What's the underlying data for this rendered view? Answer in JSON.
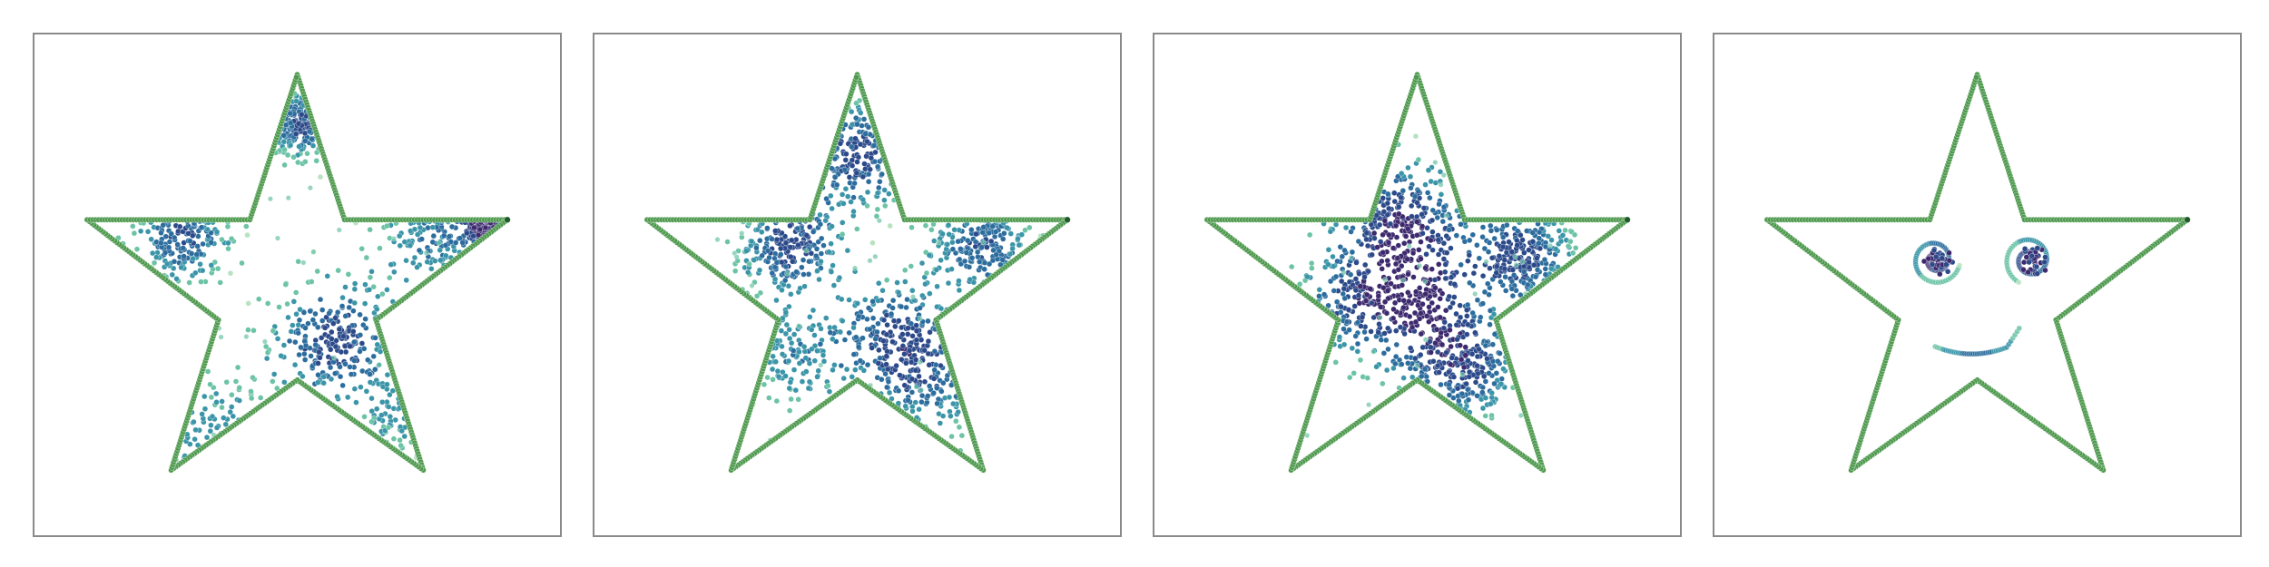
{
  "chart_data": [
    {
      "type": "scatter",
      "panel": 1,
      "title": "",
      "xlabel": "",
      "ylabel": "",
      "xlim": [
        0,
        100
      ],
      "ylim": [
        0,
        100
      ],
      "grid": false,
      "outline_series": {
        "color": "#4f9a4f",
        "shape": "five-point star outline"
      },
      "density_clusters": [
        {
          "x": 28,
          "y": 60,
          "spread": 6,
          "density": 0.8
        },
        {
          "x": 51,
          "y": 82,
          "spread": 4,
          "density": 0.9
        },
        {
          "x": 57,
          "y": 39,
          "spread": 8,
          "density": 0.9
        },
        {
          "x": 76,
          "y": 60,
          "spread": 7,
          "density": 0.6
        },
        {
          "x": 86,
          "y": 62,
          "spread": 3,
          "density": 1.0
        },
        {
          "x": 35,
          "y": 20,
          "spread": 8,
          "density": 0.5
        },
        {
          "x": 71,
          "y": 24,
          "spread": 6,
          "density": 0.4
        }
      ],
      "palette": [
        "#b7e3c1",
        "#6cc3a6",
        "#3b95a8",
        "#2c6d9e",
        "#2c4a8a",
        "#3d2a6e"
      ]
    },
    {
      "type": "scatter",
      "panel": 2,
      "title": "",
      "xlabel": "",
      "ylabel": "",
      "xlim": [
        0,
        100
      ],
      "ylim": [
        0,
        100
      ],
      "grid": false,
      "outline_series": {
        "color": "#4f9a4f",
        "shape": "five-point star outline"
      },
      "density_clusters": [
        {
          "x": 50,
          "y": 76,
          "spread": 7,
          "density": 0.9
        },
        {
          "x": 37,
          "y": 58,
          "spread": 6,
          "density": 0.9
        },
        {
          "x": 58,
          "y": 39,
          "spread": 8,
          "density": 0.9
        },
        {
          "x": 74,
          "y": 58,
          "spread": 6,
          "density": 0.8
        },
        {
          "x": 37,
          "y": 36,
          "spread": 7,
          "density": 0.5
        },
        {
          "x": 65,
          "y": 28,
          "spread": 6,
          "density": 0.4
        }
      ],
      "palette": [
        "#b7e3c1",
        "#6cc3a6",
        "#3b95a8",
        "#2c6d9e",
        "#2c4a8a",
        "#3d2a6e"
      ]
    },
    {
      "type": "scatter",
      "panel": 3,
      "title": "",
      "xlabel": "",
      "ylabel": "",
      "xlim": [
        0,
        100
      ],
      "ylim": [
        0,
        100
      ],
      "grid": false,
      "outline_series": {
        "color": "#4f9a4f",
        "shape": "five-point star outline"
      },
      "density_clusters": [
        {
          "x": 47,
          "y": 62,
          "spread": 8,
          "density": 1.0
        },
        {
          "x": 52,
          "y": 44,
          "spread": 8,
          "density": 0.9
        },
        {
          "x": 70,
          "y": 56,
          "spread": 6,
          "density": 0.9
        },
        {
          "x": 36,
          "y": 46,
          "spread": 7,
          "density": 0.6
        },
        {
          "x": 60,
          "y": 32,
          "spread": 6,
          "density": 0.7
        }
      ],
      "palette": [
        "#b7e3c1",
        "#6cc3a6",
        "#3b95a8",
        "#2c6d9e",
        "#2c4a8a",
        "#3d2a6e"
      ]
    },
    {
      "type": "scatter",
      "panel": 4,
      "title": "",
      "xlabel": "",
      "ylabel": "",
      "xlim": [
        0,
        100
      ],
      "ylim": [
        0,
        100
      ],
      "grid": false,
      "outline_series": {
        "color": "#4f9a4f",
        "shape": "five-point star outline"
      },
      "face": {
        "left_eye": {
          "x": 42,
          "y": 55
        },
        "right_eye": {
          "x": 60,
          "y": 55
        },
        "smile": {
          "x": 50,
          "y": 38
        }
      },
      "palette": [
        "#b7e3c1",
        "#6cc3a6",
        "#3b95a8",
        "#2c6d9e",
        "#2c4a8a",
        "#3d2a6e"
      ]
    }
  ]
}
